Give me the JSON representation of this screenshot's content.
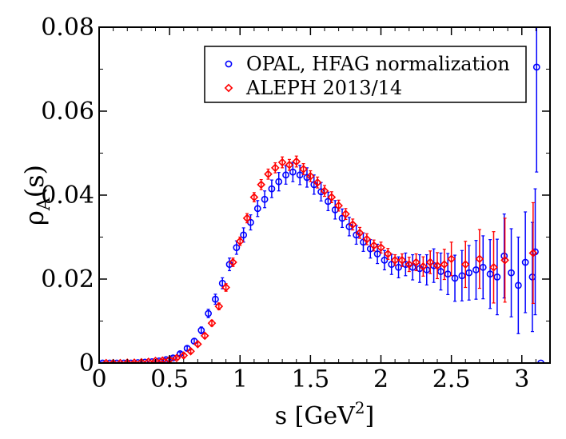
{
  "chart_data": {
    "type": "scatter",
    "xlabel": {
      "main": "s [GeV",
      "sup": "2",
      "close": "]"
    },
    "ylabel": {
      "main": "ρ",
      "sub": "A",
      "tail": "(s)"
    },
    "xlim": [
      0,
      3.2
    ],
    "ylim": [
      0,
      0.08
    ],
    "x_ticks": [
      {
        "value": 0,
        "label": "0"
      },
      {
        "value": 0.5,
        "label": "0.5"
      },
      {
        "value": 1,
        "label": "1"
      },
      {
        "value": 1.5,
        "label": "1.5"
      },
      {
        "value": 2,
        "label": "2"
      },
      {
        "value": 2.5,
        "label": "2.5"
      },
      {
        "value": 3,
        "label": "3"
      }
    ],
    "y_ticks": [
      {
        "value": 0,
        "label": "0"
      },
      {
        "value": 0.02,
        "label": "0.02"
      },
      {
        "value": 0.04,
        "label": "0.04"
      },
      {
        "value": 0.06,
        "label": "0.06"
      },
      {
        "value": 0.08,
        "label": "0.08"
      }
    ],
    "legend_position": "top-right",
    "series": [
      {
        "name": "OPAL, HFAG normalization",
        "marker": "circle",
        "color": "#0000ff",
        "points": [
          [
            0.025,
            0.0,
            0.0002
          ],
          [
            0.075,
            0.0,
            0.0002
          ],
          [
            0.125,
            0.0,
            0.0002
          ],
          [
            0.175,
            0.0,
            0.0002
          ],
          [
            0.225,
            0.0,
            0.0002
          ],
          [
            0.275,
            0.0001,
            0.0002
          ],
          [
            0.325,
            0.0002,
            0.0002
          ],
          [
            0.375,
            0.0003,
            0.0002
          ],
          [
            0.425,
            0.0005,
            0.0003
          ],
          [
            0.475,
            0.0008,
            0.0003
          ],
          [
            0.525,
            0.0012,
            0.0003
          ],
          [
            0.575,
            0.0022,
            0.0004
          ],
          [
            0.625,
            0.0035,
            0.0005
          ],
          [
            0.675,
            0.0052,
            0.0006
          ],
          [
            0.725,
            0.0078,
            0.0008
          ],
          [
            0.775,
            0.0118,
            0.001
          ],
          [
            0.825,
            0.0152,
            0.0012
          ],
          [
            0.875,
            0.019,
            0.0013
          ],
          [
            0.925,
            0.0235,
            0.0015
          ],
          [
            0.975,
            0.0275,
            0.0016
          ],
          [
            1.025,
            0.0305,
            0.0017
          ],
          [
            1.075,
            0.0335,
            0.0018
          ],
          [
            1.125,
            0.0368,
            0.0019
          ],
          [
            1.175,
            0.039,
            0.002
          ],
          [
            1.225,
            0.0415,
            0.0021
          ],
          [
            1.275,
            0.0432,
            0.0022
          ],
          [
            1.325,
            0.0448,
            0.0022
          ],
          [
            1.375,
            0.0455,
            0.0023
          ],
          [
            1.425,
            0.0448,
            0.0023
          ],
          [
            1.475,
            0.0442,
            0.0023
          ],
          [
            1.525,
            0.0425,
            0.0023
          ],
          [
            1.575,
            0.0408,
            0.0022
          ],
          [
            1.625,
            0.0385,
            0.0022
          ],
          [
            1.675,
            0.0365,
            0.0022
          ],
          [
            1.725,
            0.0345,
            0.0022
          ],
          [
            1.775,
            0.0325,
            0.0022
          ],
          [
            1.825,
            0.0305,
            0.0022
          ],
          [
            1.875,
            0.0288,
            0.0022
          ],
          [
            1.925,
            0.0272,
            0.0022
          ],
          [
            1.975,
            0.026,
            0.0023
          ],
          [
            2.025,
            0.0245,
            0.0023
          ],
          [
            2.075,
            0.0235,
            0.0024
          ],
          [
            2.125,
            0.0228,
            0.0025
          ],
          [
            2.175,
            0.0235,
            0.0027
          ],
          [
            2.225,
            0.0228,
            0.003
          ],
          [
            2.275,
            0.0225,
            0.0033
          ],
          [
            2.325,
            0.0222,
            0.0036
          ],
          [
            2.375,
            0.0232,
            0.004
          ],
          [
            2.425,
            0.0218,
            0.0044
          ],
          [
            2.475,
            0.0212,
            0.0049
          ],
          [
            2.525,
            0.0202,
            0.0055
          ],
          [
            2.575,
            0.0208,
            0.006
          ],
          [
            2.625,
            0.0215,
            0.0065
          ],
          [
            2.675,
            0.0222,
            0.007
          ],
          [
            2.725,
            0.0228,
            0.0075
          ],
          [
            2.775,
            0.0212,
            0.0082
          ],
          [
            2.825,
            0.0205,
            0.009
          ],
          [
            2.875,
            0.0255,
            0.01
          ],
          [
            2.925,
            0.0215,
            0.0105
          ],
          [
            2.975,
            0.0185,
            0.0115
          ],
          [
            3.025,
            0.024,
            0.012
          ],
          [
            3.075,
            0.0205,
            0.013
          ],
          [
            3.095,
            0.0265,
            0.015
          ],
          [
            3.105,
            0.0705,
            0.025
          ],
          [
            3.135,
            0.0,
            0.0
          ]
        ]
      },
      {
        "name": "ALEPH 2013/14",
        "marker": "diamond",
        "color": "#ff0000",
        "points": [
          [
            0.05,
            0.0,
            0.0002
          ],
          [
            0.1,
            0.0,
            0.0002
          ],
          [
            0.15,
            0.0,
            0.0002
          ],
          [
            0.2,
            0.0001,
            0.0002
          ],
          [
            0.25,
            0.0001,
            0.0002
          ],
          [
            0.3,
            0.0002,
            0.0002
          ],
          [
            0.35,
            0.0003,
            0.0002
          ],
          [
            0.4,
            0.0005,
            0.0002
          ],
          [
            0.45,
            0.0006,
            0.0003
          ],
          [
            0.5,
            0.0008,
            0.0003
          ],
          [
            0.55,
            0.0012,
            0.0003
          ],
          [
            0.6,
            0.0018,
            0.0004
          ],
          [
            0.65,
            0.0028,
            0.0004
          ],
          [
            0.7,
            0.0045,
            0.0005
          ],
          [
            0.75,
            0.0065,
            0.0006
          ],
          [
            0.8,
            0.0095,
            0.0007
          ],
          [
            0.85,
            0.0135,
            0.0008
          ],
          [
            0.9,
            0.018,
            0.0009
          ],
          [
            0.95,
            0.024,
            0.001
          ],
          [
            1.0,
            0.029,
            0.001
          ],
          [
            1.05,
            0.0345,
            0.0011
          ],
          [
            1.1,
            0.0395,
            0.0011
          ],
          [
            1.15,
            0.0425,
            0.0012
          ],
          [
            1.2,
            0.045,
            0.0012
          ],
          [
            1.25,
            0.0465,
            0.0012
          ],
          [
            1.3,
            0.0478,
            0.0013
          ],
          [
            1.35,
            0.0472,
            0.0013
          ],
          [
            1.4,
            0.048,
            0.0013
          ],
          [
            1.45,
            0.0462,
            0.0013
          ],
          [
            1.5,
            0.0445,
            0.0013
          ],
          [
            1.55,
            0.043,
            0.0013
          ],
          [
            1.6,
            0.041,
            0.0013
          ],
          [
            1.65,
            0.0395,
            0.0013
          ],
          [
            1.7,
            0.0375,
            0.0013
          ],
          [
            1.75,
            0.0355,
            0.0013
          ],
          [
            1.8,
            0.033,
            0.0013
          ],
          [
            1.85,
            0.031,
            0.0013
          ],
          [
            1.9,
            0.0295,
            0.0013
          ],
          [
            1.95,
            0.028,
            0.0013
          ],
          [
            2.0,
            0.0275,
            0.0013
          ],
          [
            2.05,
            0.026,
            0.0013
          ],
          [
            2.1,
            0.0245,
            0.0013
          ],
          [
            2.15,
            0.0245,
            0.0015
          ],
          [
            2.2,
            0.0235,
            0.0017
          ],
          [
            2.25,
            0.024,
            0.002
          ],
          [
            2.3,
            0.023,
            0.0023
          ],
          [
            2.35,
            0.024,
            0.0027
          ],
          [
            2.4,
            0.0232,
            0.0031
          ],
          [
            2.45,
            0.0235,
            0.0036
          ],
          [
            2.5,
            0.0248,
            0.004
          ],
          [
            2.6,
            0.0235,
            0.0055
          ],
          [
            2.7,
            0.0248,
            0.007
          ],
          [
            2.8,
            0.0228,
            0.0085
          ],
          [
            2.88,
            0.0245,
            0.01
          ],
          [
            3.08,
            0.0262,
            0.012
          ]
        ]
      }
    ]
  }
}
